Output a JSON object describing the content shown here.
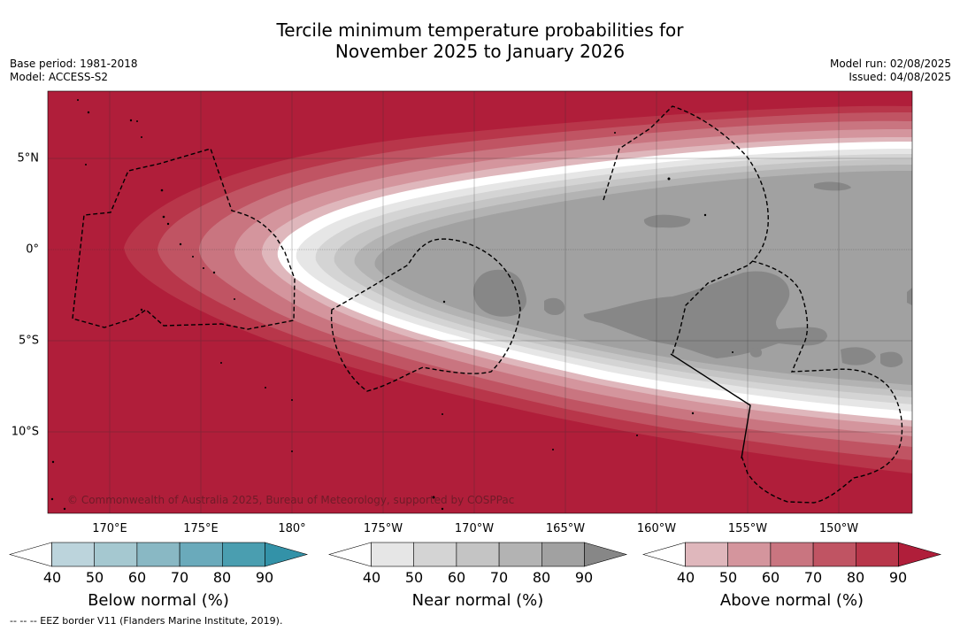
{
  "title_line1": "Tercile minimum temperature probabilities for",
  "title_line2": "November 2025 to January 2026",
  "base_period": "Base period: 1981-2018",
  "model": "Model: ACCESS-S2",
  "model_run": "Model run: 02/08/2025",
  "issued": "Issued: 04/08/2025",
  "lon_labels": [
    "170°E",
    "175°E",
    "180°",
    "175°W",
    "170°W",
    "165°W",
    "160°W",
    "155°W",
    "150°W"
  ],
  "lat_labels": [
    "5°N",
    "0°",
    "5°S",
    "10°S"
  ],
  "copyright": "© Commonwealth of Australia 2025, Bureau of Meteorology, supported by COSPPac",
  "footnote": "-- -- -- EEZ border V11 (Flanders Marine Institute, 2019).",
  "colorbars": [
    {
      "title": "Below normal (%)",
      "ticks": [
        "40",
        "50",
        "60",
        "70",
        "80",
        "90"
      ],
      "colors": [
        "#ffffff",
        "#bcd4dc",
        "#a5c8d0",
        "#89b8c4",
        "#6aaabb",
        "#4a9eb0",
        "#3392a8"
      ]
    },
    {
      "title": "Near normal (%)",
      "ticks": [
        "40",
        "50",
        "60",
        "70",
        "80",
        "90"
      ],
      "colors": [
        "#ffffff",
        "#e6e6e6",
        "#d4d4d4",
        "#c4c4c4",
        "#b3b3b3",
        "#a1a1a1",
        "#878787"
      ]
    },
    {
      "title": "Above normal (%)",
      "ticks": [
        "40",
        "50",
        "60",
        "70",
        "80",
        "90"
      ],
      "colors": [
        "#ffffff",
        "#dfb7bc",
        "#d4959d",
        "#c97580",
        "#c05463",
        "#b8364a",
        "#b01e3a"
      ]
    }
  ]
}
